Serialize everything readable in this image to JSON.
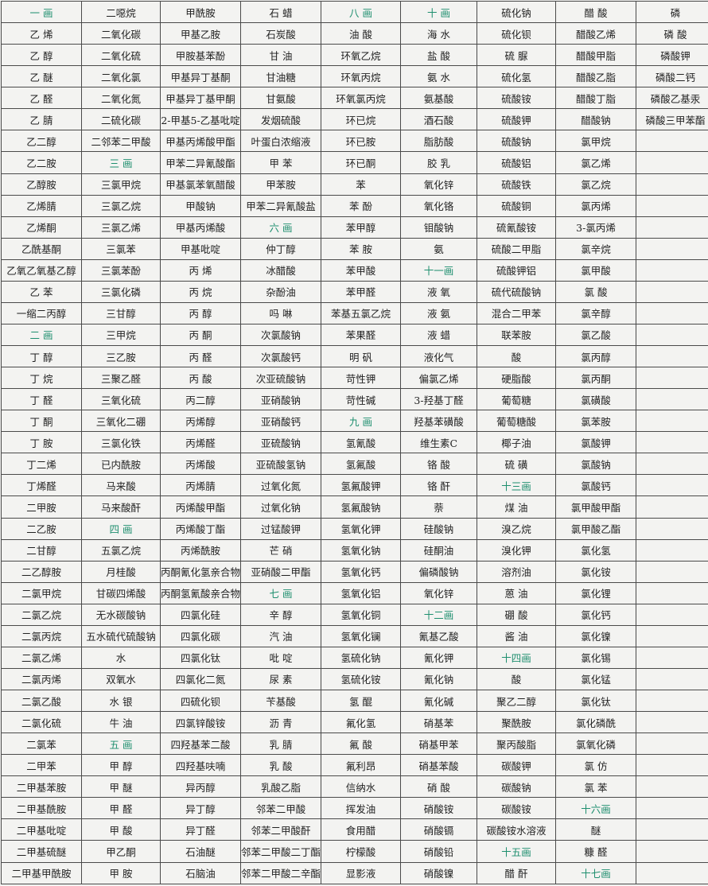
{
  "columns": [
    [
      "一 画",
      "乙 烯",
      "乙 醇",
      "乙 醚",
      "乙 醛",
      "乙 腈",
      "乙二醇",
      "乙二胺",
      "乙醇胺",
      "乙烯腈",
      "乙烯酮",
      "乙酰基酮",
      "乙氧乙氧基乙醇",
      "乙 苯",
      "一缩二丙醇",
      "二 画",
      "丁 醇",
      "丁 烷",
      "丁 醛",
      "丁 酮",
      "丁 胺",
      "丁二烯",
      "丁烯醛",
      "二甲胺",
      "二乙胺",
      "二甘醇",
      "二乙醇胺",
      "二氯甲烷",
      "二氯乙烷",
      "二氯丙烷",
      "二氯乙烯",
      "二氯丙烯",
      "二氯乙酸",
      "二氯化硫",
      "二氯苯",
      "二甲苯",
      "二甲基苯胺",
      "二甲基酰胺",
      "二甲基吡啶",
      "二甲基硫醚",
      "二甲基甲酰胺"
    ],
    [
      "二噁烷",
      "二氧化碳",
      "二氧化硫",
      "二氧化氯",
      "二氧化氮",
      "二硫化碳",
      "二邻苯二甲酸",
      "三 画",
      "三氯甲烷",
      "三氯乙烷",
      "三氯乙烯",
      "三氯苯",
      "三氯苯酚",
      "三氯化磷",
      "三甘醇",
      "三甲烷",
      "三乙胺",
      "三聚乙醛",
      "三氧化硫",
      "三氧化二硼",
      "三氯化铁",
      "已内酰胺",
      "马来酸",
      "马来酸酐",
      "四 画",
      "五氯乙烷",
      "月桂酸",
      "甘碳四烯酸",
      "无水碳酸钠",
      "五水硫代硫酸钠",
      "水",
      "双氧水",
      "水 银",
      "牛 油",
      "五 画",
      "甲 醇",
      "甲 醚",
      "甲 醛",
      "甲 酸",
      "甲乙酮",
      "甲 胺"
    ],
    [
      "甲酰胺",
      "甲基乙胺",
      "甲胺基苯酚",
      "甲基异丁基酮",
      "甲基异丁基甲酮",
      "2-甲基5-乙基吡啶",
      "甲基丙烯酸甲酯",
      "甲苯二异氰酸酯",
      "甲基氯苯氧醋酸",
      "甲酸钠",
      "甲基丙烯酸",
      "甲基吡啶",
      "丙 烯",
      "丙 烷",
      "丙 醇",
      "丙 酮",
      "丙 醛",
      "丙 酸",
      "丙二醇",
      "丙烯醇",
      "丙烯醛",
      "丙烯酸",
      "丙烯腈",
      "丙烯酸甲酯",
      "丙烯酸丁酯",
      "丙烯酰胺",
      "丙酮氰化氢亲合物",
      "丙酮氢氰酸亲合物",
      "四氯化硅",
      "四氯化碳",
      "四氯化钛",
      "四氯化二氮",
      "四硫化钡",
      "四氯锌酸铵",
      "四羟基苯二酸",
      "四羟基呋喃",
      "异丙醇",
      "异丁醇",
      "异丁醛",
      "石油醚",
      "石脑油"
    ],
    [
      "石 蜡",
      "石炭酸",
      "甘 油",
      "甘油糖",
      "甘氨酸",
      "发烟硫酸",
      "叶蛋白浓缩液",
      "甲 苯",
      "甲苯胺",
      "甲苯二异氰酸盐",
      "六 画",
      "仲丁醇",
      "冰醋酸",
      "杂酚油",
      "吗 啉",
      "次氯酸钠",
      "次氯酸钙",
      "次亚硫酸钠",
      "亚硝酸钠",
      "亚硝酸钙",
      "亚硫酸钠",
      "亚硫酸氢钠",
      "过氧化氮",
      "过氧化钠",
      "过锰酸钾",
      "芒 硝",
      "亚硝酸二甲酯",
      "七 画",
      "辛 醇",
      "汽 油",
      "吡 啶",
      "尿 素",
      "苄基酸",
      "沥 青",
      "乳 腈",
      "乳 酸",
      "乳酸乙脂",
      "邻苯二甲酸",
      "邻苯二甲酸酐",
      "邻苯二甲酸二丁酯",
      "邻苯二甲酸二辛酯"
    ],
    [
      "八 画",
      "油 酸",
      "环氧乙烷",
      "环氧丙烷",
      "环氧氯丙烷",
      "环已烷",
      "环已胺",
      "环已酮",
      "苯",
      "苯 酚",
      "苯甲醇",
      "苯 胺",
      "苯甲酸",
      "苯甲醛",
      "苯基五氯乙烷",
      "苯果醛",
      "明 矾",
      "苛性钾",
      "苛性碱",
      "九 画",
      "氢氰酸",
      "氢氟酸",
      "氢氟酸钾",
      "氢氟酸钠",
      "氢氧化钾",
      "氢氧化钠",
      "氢氧化钙",
      "氢氧化铝",
      "氢氧化铜",
      "氢氧化镧",
      "氢硫化钠",
      "氢硫化铵",
      "氢 醌",
      "氟化氢",
      "氟 酸",
      "氟利昂",
      "信纳水",
      "挥发油",
      "食用醋",
      "柠檬酸",
      "显影液"
    ],
    [
      "十 画",
      "海 水",
      "盐 酸",
      "氨 水",
      "氨基酸",
      "酒石酸",
      "脂肪酸",
      "胶 乳",
      "氧化锌",
      "氧化铬",
      "钼酸钠",
      "氨",
      "十一画",
      "液 氧",
      "液 氨",
      "液 蜡",
      "液化气",
      "偏氯乙烯",
      "3-羟基丁醛",
      "羟基苯磺酸",
      "维生素C",
      "铬 酸",
      "铬 酐",
      "萘",
      "硅酸钠",
      "硅酮油",
      "偏磷酸钠",
      "氧化锌",
      "十二画",
      "氰基乙酸",
      "氰化钾",
      "氰化钠",
      "氰化碱",
      "硝基苯",
      "硝基甲苯",
      "硝基苯酸",
      "硝 酸",
      "硝酸铵",
      "硝酸镉",
      "硝酸铅",
      "硝酸镍"
    ],
    [
      "硫化钠",
      "硫化钡",
      "硫 脲",
      "硫化氢",
      "硫酸铵",
      "硫酸钾",
      "硫酸钠",
      "硫酸铝",
      "硫酸铁",
      "硫酸铜",
      "硫氰酸铵",
      "硫酸二甲脂",
      "硫酸钾铝",
      "硫代硫酸钠",
      "混合二甲苯",
      "联苯胺",
      "酸",
      "硬脂酸",
      "葡萄糖",
      "葡萄糖酸",
      "椰子油",
      "硫 磺",
      "十三画",
      "煤 油",
      "溴乙烷",
      "溴化钾",
      "溶剂油",
      "蒽 油",
      "硼 酸",
      "酱 油",
      "十四画",
      "酸",
      "聚乙二醇",
      "聚酰胺",
      "聚丙酸脂",
      "碳酸钾",
      "碳酸钠",
      "碳酸铵",
      "碳酸铵水溶液",
      "十五画",
      "醋 酐"
    ],
    [
      "醋 酸",
      "醋酸乙烯",
      "醋酸甲脂",
      "醋酸乙脂",
      "醋酸丁脂",
      "醋酸钠",
      "氯甲烷",
      "氯乙烯",
      "氯乙烷",
      "氯丙烯",
      "3-氯丙烯",
      "氯辛烷",
      "氯甲酸",
      "氯 酸",
      "氯辛醇",
      "氯乙酸",
      "氯丙醇",
      "氯丙酮",
      "氯磺酸",
      "氯苯胺",
      "氯酸钾",
      "氯酸钠",
      "氯酸钙",
      "氯甲酸甲酯",
      "氯甲酸乙酯",
      "氯化氢",
      "氯化铵",
      "氯化锂",
      "氯化钙",
      "氯化镍",
      "氯化锡",
      "氯化锰",
      "氯化钛",
      "氯化磷酰",
      "氯氧化磷",
      "氯 仿",
      "氯 苯",
      "十六画",
      "醚",
      "糠 醛",
      "十七画"
    ],
    [
      "磷",
      "磷 酸",
      "磷酸钾",
      "磷酸二钙",
      "磷酸乙基汞",
      "磷酸三甲苯酯"
    ]
  ]
}
